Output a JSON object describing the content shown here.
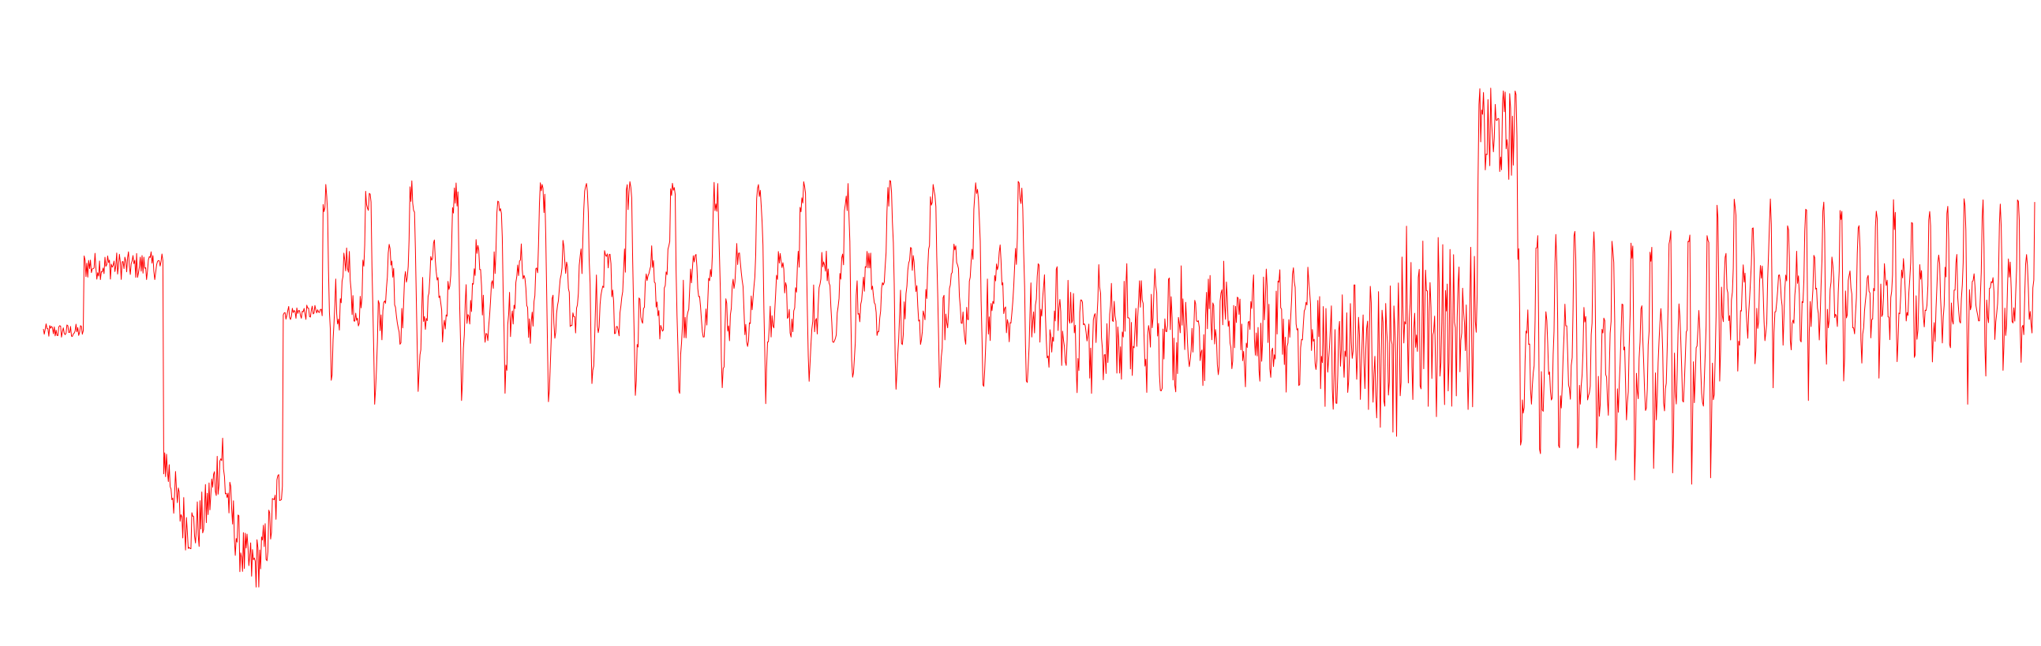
{
  "chart_data": {
    "type": "line",
    "title": "",
    "xlabel": "",
    "ylabel": "",
    "axes_visible": false,
    "grid": false,
    "legend": "none",
    "ylim": [
      -1.6,
      1.6
    ],
    "series": [
      {
        "color": "#ff0000",
        "segments": [
          {
            "start": 0,
            "end": 2,
            "kind": "flat",
            "level": 0.0
          },
          {
            "start": 2,
            "end": 6,
            "kind": "shallow",
            "level": 0.35
          },
          {
            "start": 6,
            "end": 9,
            "kind": "spike",
            "level": -1.05
          },
          {
            "start": 9,
            "end": 12,
            "kind": "spike",
            "level": -1.25
          },
          {
            "start": 12,
            "end": 14,
            "kind": "flat",
            "level": 0.1
          },
          {
            "start": 14,
            "end": 50,
            "kind": "periodic",
            "cycles": 16.5,
            "hi": 0.72,
            "lo": -0.3,
            "amp": 0.85
          },
          {
            "start": 50,
            "end": 64,
            "kind": "noisy",
            "mid": 0.02,
            "amp": 0.3
          },
          {
            "start": 64,
            "end": 68,
            "kind": "noisy",
            "mid": -0.12,
            "amp": 0.4
          },
          {
            "start": 68,
            "end": 72,
            "kind": "noisy",
            "mid": 0.05,
            "amp": 0.45
          },
          {
            "start": 72,
            "end": 74,
            "kind": "burst",
            "level": 1.05
          },
          {
            "start": 74,
            "end": 84,
            "kind": "periodic",
            "cycles": 10.5,
            "hi": 0.45,
            "lo": -0.75,
            "amp": 0.85
          },
          {
            "start": 84,
            "end": 100,
            "kind": "periodic",
            "cycles": 18.0,
            "hi": 0.62,
            "lo": -0.25,
            "amp": 0.75
          }
        ]
      }
    ],
    "x_range": [
      0,
      100
    ],
    "samples": 2200
  }
}
